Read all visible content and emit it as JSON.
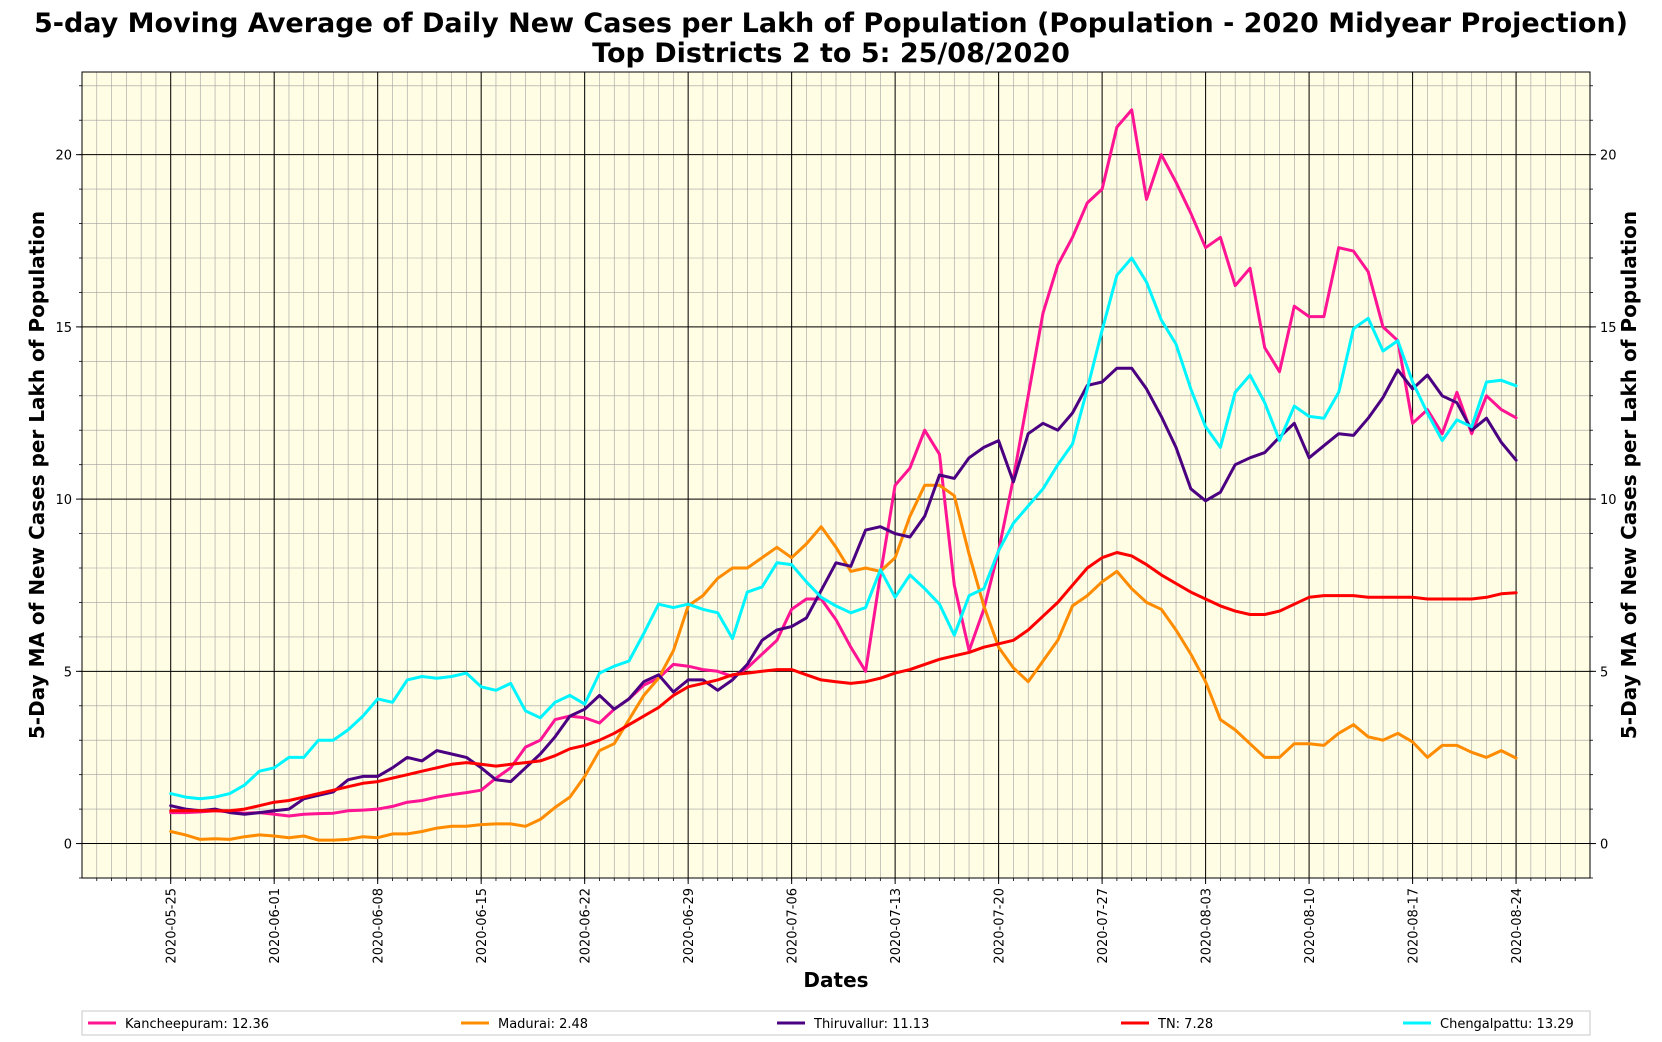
{
  "chart_data": {
    "type": "line",
    "title": "5-day Moving Average of Daily New Cases per Lakh of Population (Population - 2020 Midyear Projection)",
    "subtitle": "Top Districts 2 to 5: 25/08/2020",
    "xlabel": "Dates",
    "ylabel": "5-Day MA of New Cases per Lakh of Population",
    "ylabel_right": "5-Day MA of New Cases per Lakh of Population",
    "ylim": [
      -1,
      22.4
    ],
    "xlim": [
      "2020-05-19",
      "2020-08-29"
    ],
    "grid": true,
    "background_color": "#fffde3",
    "legend_position": "bottom",
    "x_start": "2020-05-25",
    "x_end": "2020-08-24",
    "x_tick_labels": [
      "2020-05-25",
      "2020-06-01",
      "2020-06-08",
      "2020-06-15",
      "2020-06-22",
      "2020-06-29",
      "2020-07-06",
      "2020-07-13",
      "2020-07-20",
      "2020-07-27",
      "2020-08-03",
      "2020-08-10",
      "2020-08-17",
      "2020-08-24"
    ],
    "y_ticks": [
      0,
      5,
      10,
      15,
      20
    ],
    "series": [
      {
        "name": "Kancheepuram",
        "legend_label": "Kancheepuram: 12.36",
        "color": "#ff1493",
        "values": [
          0.9,
          0.9,
          0.92,
          0.95,
          0.92,
          0.88,
          0.9,
          0.85,
          0.8,
          0.85,
          0.87,
          0.88,
          0.95,
          0.97,
          1.0,
          1.08,
          1.2,
          1.25,
          1.35,
          1.42,
          1.48,
          1.55,
          1.9,
          2.2,
          2.8,
          3.0,
          3.6,
          3.7,
          3.65,
          3.5,
          3.9,
          4.2,
          4.6,
          4.8,
          5.2,
          5.15,
          5.05,
          5.0,
          4.85,
          5.1,
          5.5,
          5.9,
          6.8,
          7.1,
          7.1,
          6.5,
          5.7,
          5.0,
          7.8,
          10.4,
          10.9,
          12.0,
          11.3,
          7.5,
          5.6,
          6.8,
          8.5,
          10.6,
          13.0,
          15.4,
          16.8,
          17.6,
          18.6,
          19.0,
          20.8,
          21.3,
          18.7,
          20.0,
          19.2,
          18.3,
          17.3,
          17.6,
          16.2,
          16.7,
          14.4,
          13.7,
          15.6,
          15.3,
          15.3,
          17.3,
          17.2,
          16.6,
          15.0,
          14.6,
          12.2,
          12.6,
          11.9,
          13.1,
          11.9,
          13.0,
          12.6,
          12.36
        ]
      },
      {
        "name": "Madurai",
        "legend_label": "Madurai: 2.48",
        "color": "#ff8c00",
        "values": [
          0.35,
          0.25,
          0.12,
          0.14,
          0.12,
          0.2,
          0.25,
          0.22,
          0.17,
          0.22,
          0.1,
          0.1,
          0.12,
          0.2,
          0.17,
          0.28,
          0.28,
          0.35,
          0.45,
          0.5,
          0.5,
          0.55,
          0.57,
          0.57,
          0.5,
          0.7,
          1.05,
          1.35,
          1.95,
          2.7,
          2.9,
          3.6,
          4.3,
          4.8,
          5.6,
          6.9,
          7.2,
          7.7,
          8.0,
          8.0,
          8.3,
          8.6,
          8.3,
          8.7,
          9.2,
          8.6,
          7.9,
          8.0,
          7.9,
          8.3,
          9.5,
          10.4,
          10.4,
          10.1,
          8.4,
          6.9,
          5.7,
          5.1,
          4.7,
          5.3,
          5.9,
          6.9,
          7.2,
          7.6,
          7.9,
          7.4,
          7.0,
          6.8,
          6.2,
          5.5,
          4.7,
          3.6,
          3.3,
          2.9,
          2.5,
          2.5,
          2.9,
          2.9,
          2.85,
          3.2,
          3.45,
          3.1,
          3.0,
          3.2,
          2.95,
          2.5,
          2.85,
          2.85,
          2.65,
          2.5,
          2.7,
          2.48
        ]
      },
      {
        "name": "Thiruvallur",
        "legend_label": "Thiruvallur: 11.13",
        "color": "#4b0082",
        "values": [
          1.1,
          1.0,
          0.95,
          1.0,
          0.9,
          0.85,
          0.9,
          0.95,
          1.0,
          1.3,
          1.4,
          1.5,
          1.85,
          1.95,
          1.95,
          2.2,
          2.5,
          2.4,
          2.7,
          2.6,
          2.5,
          2.2,
          1.85,
          1.8,
          2.2,
          2.6,
          3.1,
          3.7,
          3.9,
          4.3,
          3.9,
          4.2,
          4.7,
          4.9,
          4.4,
          4.75,
          4.75,
          4.45,
          4.75,
          5.2,
          5.9,
          6.2,
          6.3,
          6.55,
          7.35,
          8.15,
          8.05,
          9.1,
          9.2,
          9.0,
          8.9,
          9.5,
          10.7,
          10.6,
          11.2,
          11.5,
          11.7,
          10.5,
          11.9,
          12.2,
          12.0,
          12.5,
          13.3,
          13.4,
          13.8,
          13.8,
          13.2,
          12.4,
          11.5,
          10.3,
          9.95,
          10.2,
          11.0,
          11.2,
          11.35,
          11.8,
          12.2,
          11.2,
          11.55,
          11.9,
          11.85,
          12.35,
          12.95,
          13.75,
          13.2,
          13.6,
          13.0,
          12.8,
          12.0,
          12.35,
          11.65,
          11.13
        ]
      },
      {
        "name": "TN",
        "legend_label": "TN: 7.28",
        "color": "#ff0000",
        "values": [
          0.95,
          0.95,
          0.95,
          0.95,
          0.95,
          1.0,
          1.1,
          1.2,
          1.25,
          1.35,
          1.45,
          1.55,
          1.65,
          1.75,
          1.8,
          1.9,
          2.0,
          2.1,
          2.2,
          2.3,
          2.35,
          2.3,
          2.25,
          2.3,
          2.35,
          2.4,
          2.55,
          2.75,
          2.85,
          3.0,
          3.2,
          3.45,
          3.7,
          3.95,
          4.3,
          4.55,
          4.65,
          4.75,
          4.9,
          4.95,
          5.0,
          5.05,
          5.05,
          4.9,
          4.75,
          4.7,
          4.65,
          4.7,
          4.8,
          4.95,
          5.05,
          5.2,
          5.35,
          5.45,
          5.55,
          5.7,
          5.8,
          5.9,
          6.2,
          6.6,
          7.0,
          7.5,
          8.0,
          8.3,
          8.45,
          8.35,
          8.1,
          7.8,
          7.55,
          7.3,
          7.1,
          6.9,
          6.75,
          6.65,
          6.65,
          6.75,
          6.95,
          7.15,
          7.2,
          7.2,
          7.2,
          7.15,
          7.15,
          7.15,
          7.15,
          7.1,
          7.1,
          7.1,
          7.1,
          7.15,
          7.25,
          7.28
        ]
      },
      {
        "name": "Chengalpattu",
        "legend_label": "Chengalpattu: 13.29",
        "color": "#00f5ff",
        "values": [
          1.45,
          1.35,
          1.3,
          1.35,
          1.45,
          1.7,
          2.1,
          2.2,
          2.5,
          2.5,
          3.0,
          3.0,
          3.3,
          3.7,
          4.2,
          4.1,
          4.75,
          4.85,
          4.8,
          4.85,
          4.95,
          4.55,
          4.45,
          4.65,
          3.85,
          3.65,
          4.1,
          4.3,
          4.05,
          4.95,
          5.15,
          5.3,
          6.1,
          6.95,
          6.85,
          6.95,
          6.8,
          6.7,
          5.95,
          7.3,
          7.45,
          8.15,
          8.1,
          7.6,
          7.15,
          6.9,
          6.7,
          6.85,
          7.95,
          7.15,
          7.8,
          7.4,
          6.95,
          6.05,
          7.2,
          7.4,
          8.5,
          9.3,
          9.8,
          10.3,
          11.0,
          11.6,
          13.2,
          14.9,
          16.5,
          17.0,
          16.3,
          15.2,
          14.5,
          13.2,
          12.1,
          11.5,
          13.1,
          13.6,
          12.8,
          11.7,
          12.7,
          12.4,
          12.35,
          13.1,
          14.95,
          15.25,
          14.3,
          14.6,
          13.4,
          12.5,
          11.7,
          12.3,
          12.1,
          13.4,
          13.45,
          13.29
        ]
      }
    ]
  }
}
